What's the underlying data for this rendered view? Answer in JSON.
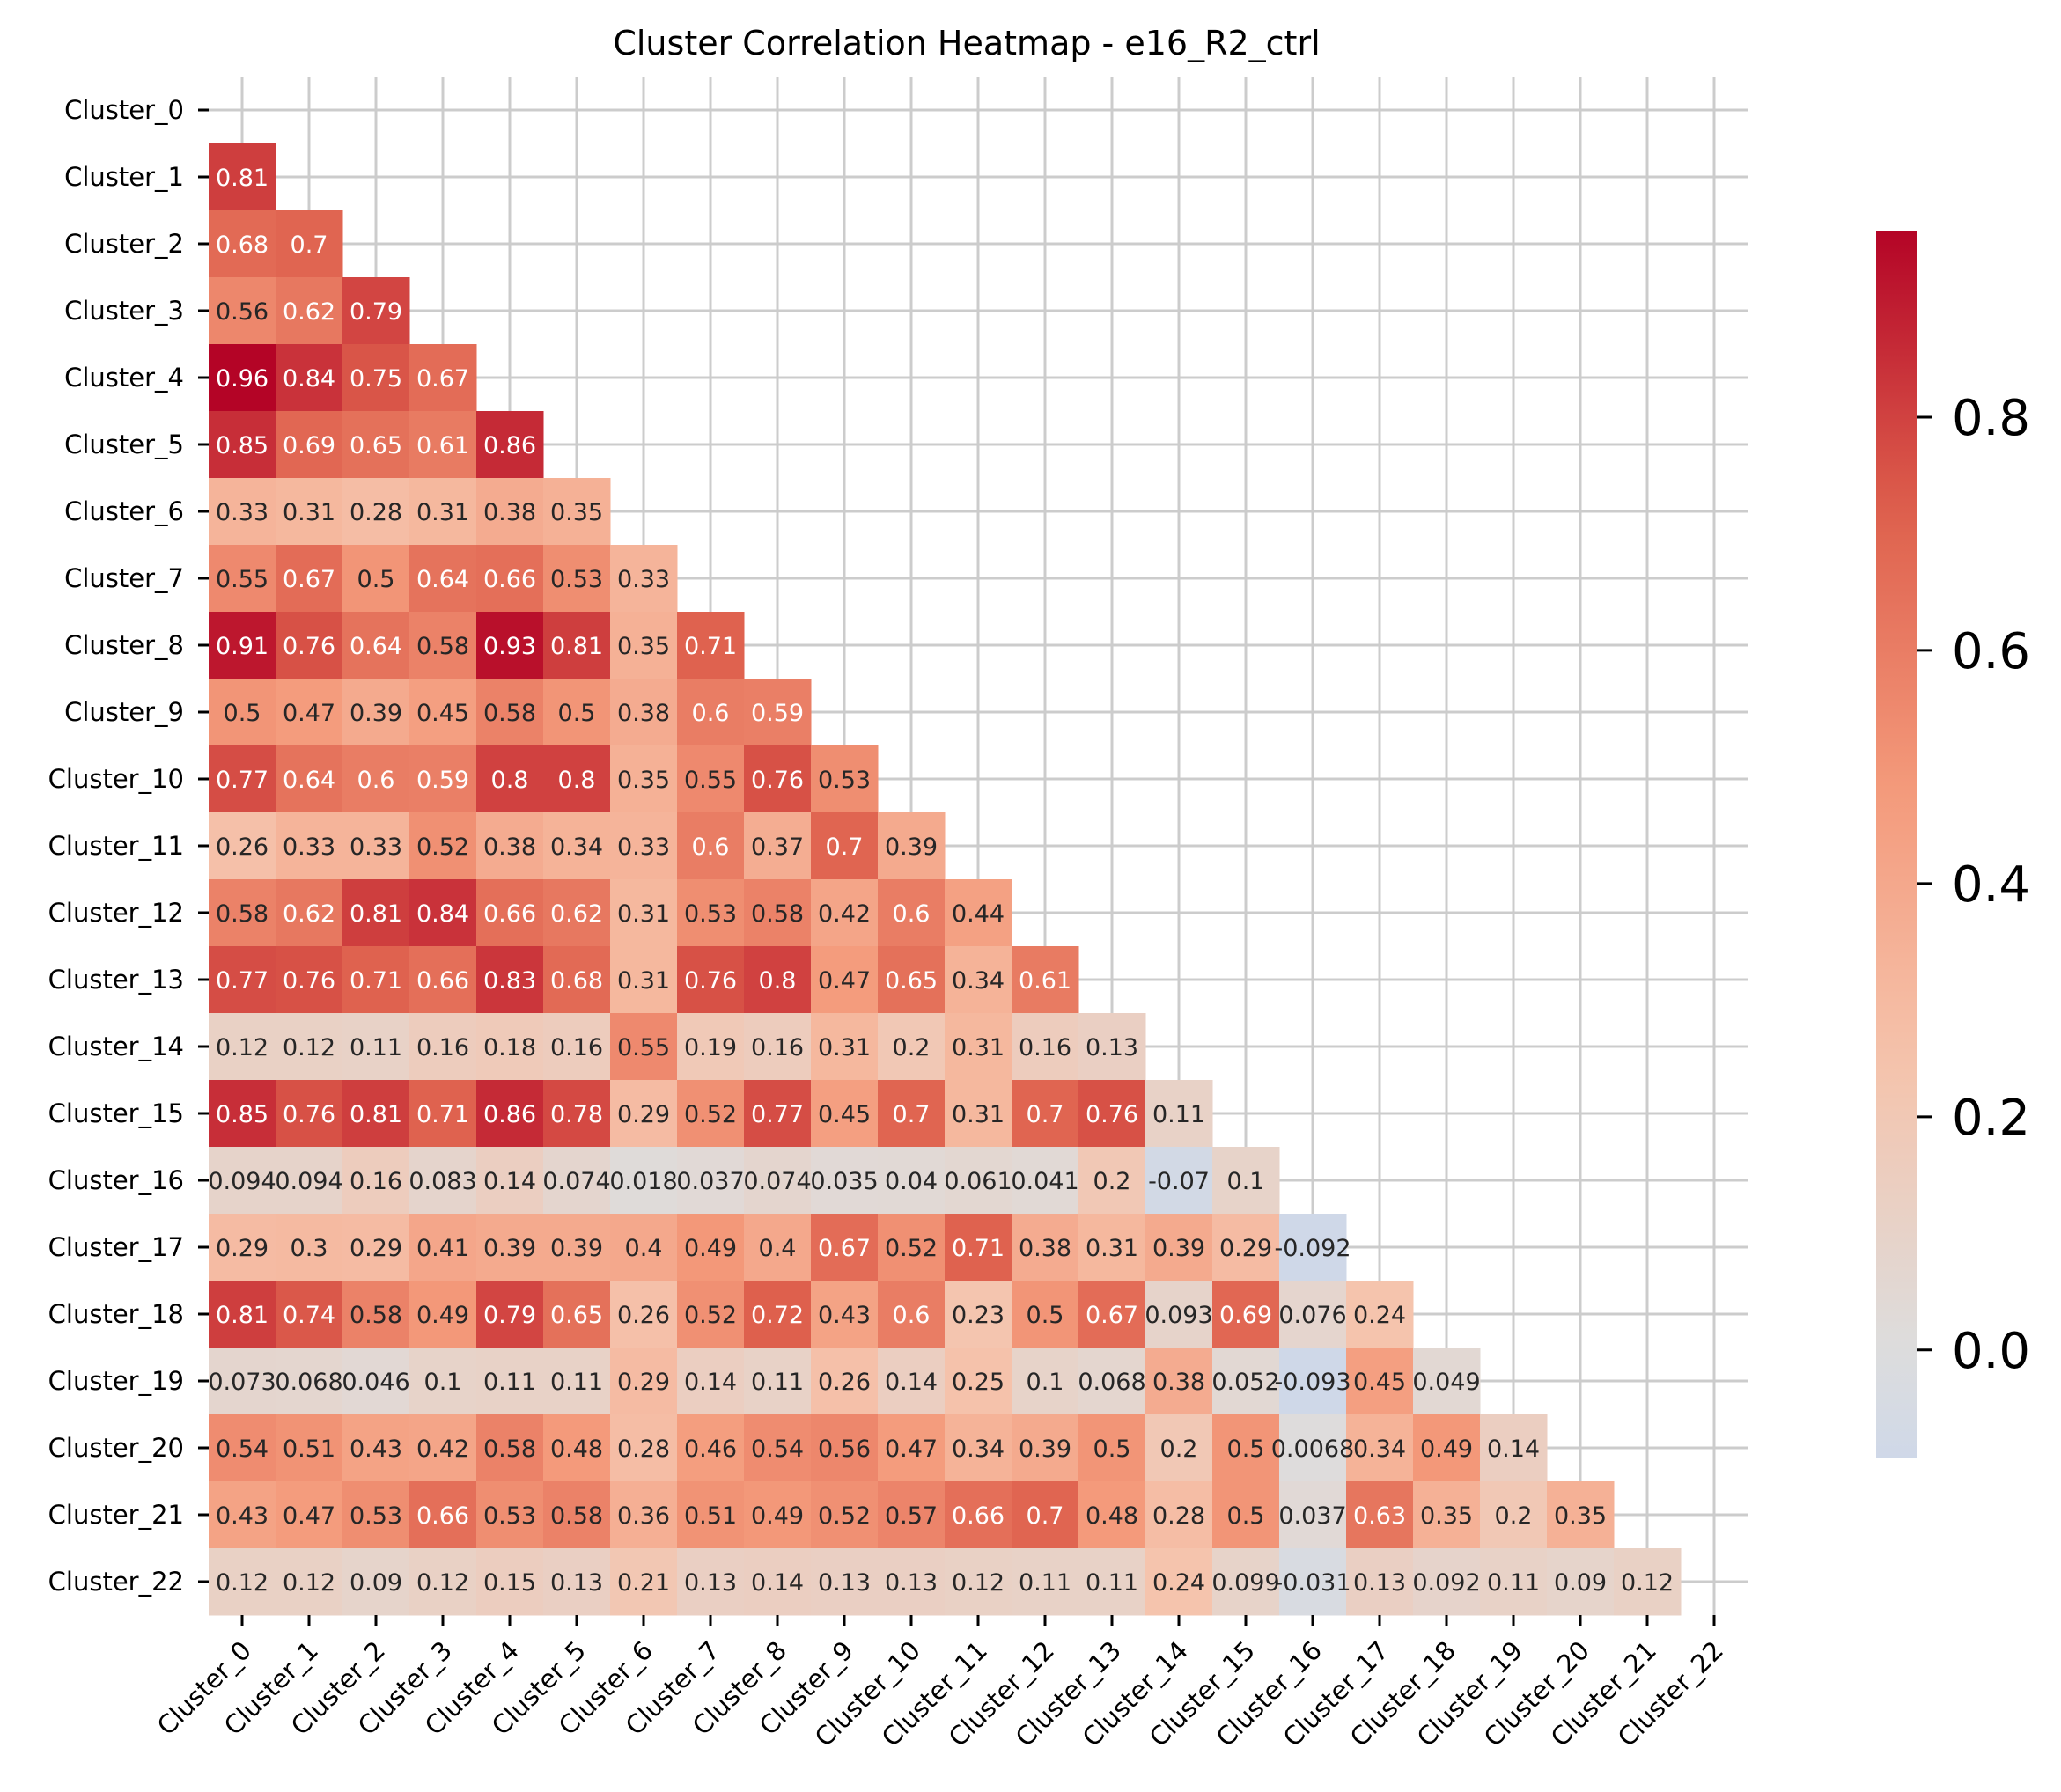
{
  "chart_data": {
    "type": "heatmap",
    "title": "Cluster Correlation Heatmap - e16_R2_ctrl",
    "labels": [
      "Cluster_0",
      "Cluster_1",
      "Cluster_2",
      "Cluster_3",
      "Cluster_4",
      "Cluster_5",
      "Cluster_6",
      "Cluster_7",
      "Cluster_8",
      "Cluster_9",
      "Cluster_10",
      "Cluster_11",
      "Cluster_12",
      "Cluster_13",
      "Cluster_14",
      "Cluster_15",
      "Cluster_16",
      "Cluster_17",
      "Cluster_18",
      "Cluster_19",
      "Cluster_20",
      "Cluster_21",
      "Cluster_22"
    ],
    "mask": "upper-triangle-including-diagonal",
    "rows": [
      [],
      [
        0.81
      ],
      [
        0.68,
        0.7
      ],
      [
        0.56,
        0.62,
        0.79
      ],
      [
        0.96,
        0.84,
        0.75,
        0.67
      ],
      [
        0.85,
        0.69,
        0.65,
        0.61,
        0.86
      ],
      [
        0.33,
        0.31,
        0.28,
        0.31,
        0.38,
        0.35
      ],
      [
        0.55,
        0.67,
        0.5,
        0.64,
        0.66,
        0.53,
        0.33
      ],
      [
        0.91,
        0.76,
        0.64,
        0.58,
        0.93,
        0.81,
        0.35,
        0.71
      ],
      [
        0.5,
        0.47,
        0.39,
        0.45,
        0.58,
        0.5,
        0.38,
        0.6,
        0.59
      ],
      [
        0.77,
        0.64,
        0.6,
        0.59,
        0.8,
        0.8,
        0.35,
        0.55,
        0.76,
        0.53
      ],
      [
        0.26,
        0.33,
        0.33,
        0.52,
        0.38,
        0.34,
        0.33,
        0.6,
        0.37,
        0.7,
        0.39
      ],
      [
        0.58,
        0.62,
        0.81,
        0.84,
        0.66,
        0.62,
        0.31,
        0.53,
        0.58,
        0.42,
        0.6,
        0.44
      ],
      [
        0.77,
        0.76,
        0.71,
        0.66,
        0.83,
        0.68,
        0.31,
        0.76,
        0.8,
        0.47,
        0.65,
        0.34,
        0.61
      ],
      [
        0.12,
        0.12,
        0.11,
        0.16,
        0.18,
        0.16,
        0.55,
        0.19,
        0.16,
        0.31,
        0.2,
        0.31,
        0.16,
        0.13
      ],
      [
        0.85,
        0.76,
        0.81,
        0.71,
        0.86,
        0.78,
        0.29,
        0.52,
        0.77,
        0.45,
        0.7,
        0.31,
        0.7,
        0.76,
        0.11
      ],
      [
        0.094,
        0.094,
        0.16,
        0.083,
        0.14,
        0.074,
        0.018,
        0.037,
        0.074,
        0.035,
        0.04,
        0.061,
        0.041,
        0.2,
        -0.07,
        0.1
      ],
      [
        0.29,
        0.3,
        0.29,
        0.41,
        0.39,
        0.39,
        0.4,
        0.49,
        0.4,
        0.67,
        0.52,
        0.71,
        0.38,
        0.31,
        0.39,
        0.29,
        -0.092
      ],
      [
        0.81,
        0.74,
        0.58,
        0.49,
        0.79,
        0.65,
        0.26,
        0.52,
        0.72,
        0.43,
        0.6,
        0.23,
        0.5,
        0.67,
        0.093,
        0.69,
        0.076,
        0.24
      ],
      [
        0.073,
        0.068,
        0.046,
        0.1,
        0.11,
        0.11,
        0.29,
        0.14,
        0.11,
        0.26,
        0.14,
        0.25,
        0.1,
        0.068,
        0.38,
        0.052,
        -0.093,
        0.45,
        0.049
      ],
      [
        0.54,
        0.51,
        0.43,
        0.42,
        0.58,
        0.48,
        0.28,
        0.46,
        0.54,
        0.56,
        0.47,
        0.34,
        0.39,
        0.5,
        0.2,
        0.5,
        0.0068,
        0.34,
        0.49,
        0.14
      ],
      [
        0.43,
        0.47,
        0.53,
        0.66,
        0.53,
        0.58,
        0.36,
        0.51,
        0.49,
        0.52,
        0.57,
        0.66,
        0.7,
        0.48,
        0.28,
        0.5,
        0.037,
        0.63,
        0.35,
        0.2,
        0.35
      ],
      [
        0.12,
        0.12,
        0.09,
        0.12,
        0.15,
        0.13,
        0.21,
        0.13,
        0.14,
        0.13,
        0.13,
        0.12,
        0.11,
        0.11,
        0.24,
        0.099,
        -0.031,
        0.13,
        0.092,
        0.11,
        0.09,
        0.12
      ]
    ],
    "colormap": "coolwarm",
    "vmin": -0.093,
    "vmax": 0.96,
    "vcenter": 0,
    "colorbar_ticks": [
      0.0,
      0.2,
      0.4,
      0.6,
      0.8
    ],
    "colorbar_tick_labels": [
      "0.0",
      "0.2",
      "0.4",
      "0.6",
      "0.8"
    ],
    "grid": true,
    "annotated": true
  }
}
